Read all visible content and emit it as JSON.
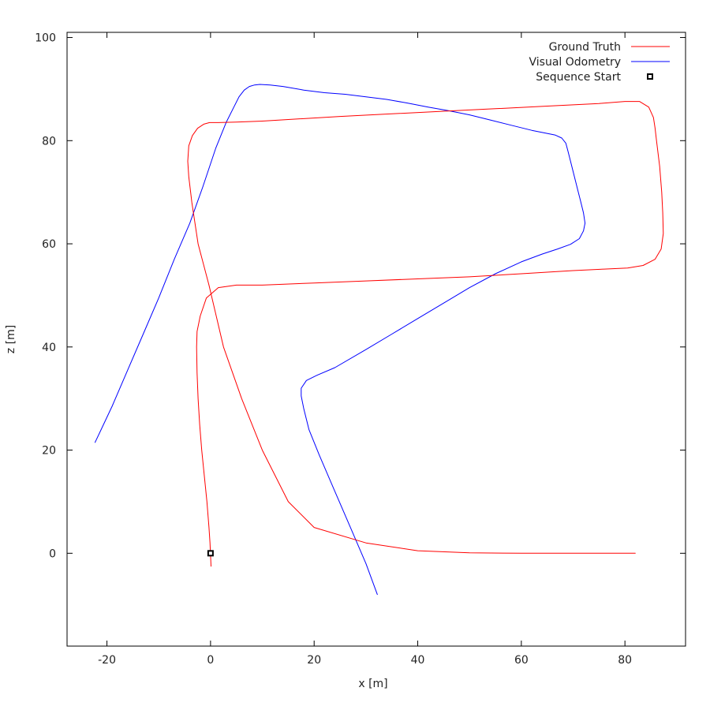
{
  "chart_data": {
    "type": "line",
    "title": "",
    "xlabel": "x [m]",
    "ylabel": "z [m]",
    "xlim": [
      -27.7,
      91.7
    ],
    "ylim": [
      -18,
      101
    ],
    "xticks": [
      -20,
      0,
      20,
      40,
      60,
      80
    ],
    "yticks": [
      0,
      20,
      40,
      60,
      80,
      100
    ],
    "grid": false,
    "legend_position": "top-right",
    "series": [
      {
        "name": "Ground Truth",
        "color": "#ff0000",
        "x": [
          0.1,
          -0.1,
          -0.3,
          -0.7,
          -1.2,
          -1.7,
          -2.1,
          -2.4,
          -2.6,
          -2.7,
          -2.6,
          -2.0,
          -0.8,
          1.5,
          5.0,
          10,
          20,
          30,
          40,
          50,
          60,
          70,
          76,
          80.5,
          83.5,
          85.8,
          87.0,
          87.4,
          87.3,
          87.1,
          86.7,
          86.1,
          85.8,
          85.5,
          84.6,
          82.8,
          80,
          75,
          65,
          55,
          45,
          35,
          25,
          15,
          10,
          5,
          1.5,
          -0.2,
          -1.3,
          -2.5,
          -3.5,
          -4.2,
          -4.4,
          -4.2,
          -3.6,
          -2.4,
          -0.3,
          2.5,
          6.0,
          10,
          15,
          20,
          30,
          40,
          50,
          60,
          70,
          75,
          80,
          82
        ],
        "y": [
          -2.5,
          2.0,
          5.0,
          10,
          15,
          20,
          25,
          30,
          35,
          40,
          43,
          46,
          49.5,
          51.5,
          52.0,
          52.0,
          52.4,
          52.8,
          53.2,
          53.6,
          54.2,
          54.8,
          55.1,
          55.3,
          55.8,
          57.0,
          59.0,
          62,
          66,
          70,
          75,
          80,
          82.5,
          84.5,
          86.5,
          87.6,
          87.6,
          87.2,
          86.7,
          86.2,
          85.7,
          85.2,
          84.7,
          84.1,
          83.8,
          83.6,
          83.5,
          83.5,
          83.2,
          82.4,
          81.0,
          79,
          76,
          73,
          68,
          60,
          52,
          40,
          30,
          20,
          10,
          5,
          2,
          0.5,
          0.1,
          0.0,
          0.0,
          0.0,
          0.0,
          0.0
        ]
      },
      {
        "name": "Visual Odometry",
        "color": "#0000ff",
        "x": [
          32.2,
          30,
          27,
          24,
          21,
          19,
          18,
          17.5,
          17.5,
          18.5,
          20.5,
          24,
          30,
          35,
          40,
          45,
          50,
          55,
          60,
          64,
          67,
          69.5,
          71.2,
          72.0,
          72.3,
          72.0,
          71.5,
          71.0,
          70.5,
          70.0,
          69.5,
          69.0,
          68.6,
          67.8,
          66.5,
          64.5,
          62,
          58,
          54,
          50,
          46,
          42,
          38,
          34,
          30,
          26,
          22,
          18,
          14,
          11.5,
          9.5,
          8.5,
          7.5,
          6.5,
          5.5,
          4.5,
          3.0,
          1.0,
          -1.5,
          -4.0,
          -7.0,
          -10.0,
          -13.0,
          -16.0,
          -19.0,
          -22.3
        ],
        "y": [
          -8,
          -2,
          5,
          12,
          19,
          24,
          28,
          30.5,
          32,
          33.5,
          34.5,
          36,
          39.5,
          42.5,
          45.5,
          48.5,
          51.5,
          54.2,
          56.5,
          58.0,
          59.0,
          59.9,
          61.0,
          62.5,
          64,
          66,
          68,
          70,
          72,
          74,
          76,
          78,
          79.5,
          80.5,
          81.1,
          81.5,
          82.0,
          83.0,
          84.0,
          85.0,
          85.8,
          86.5,
          87.3,
          88.0,
          88.5,
          89.0,
          89.3,
          89.8,
          90.5,
          90.8,
          90.9,
          90.8,
          90.5,
          89.8,
          88.5,
          86.5,
          83.5,
          78.5,
          71.0,
          64.0,
          57.0,
          49.5,
          42.5,
          35.5,
          28.5,
          21.5
        ]
      }
    ],
    "markers": [
      {
        "name": "Sequence Start",
        "x": 0,
        "y": 0,
        "shape": "square",
        "color": "#000000"
      }
    ]
  }
}
